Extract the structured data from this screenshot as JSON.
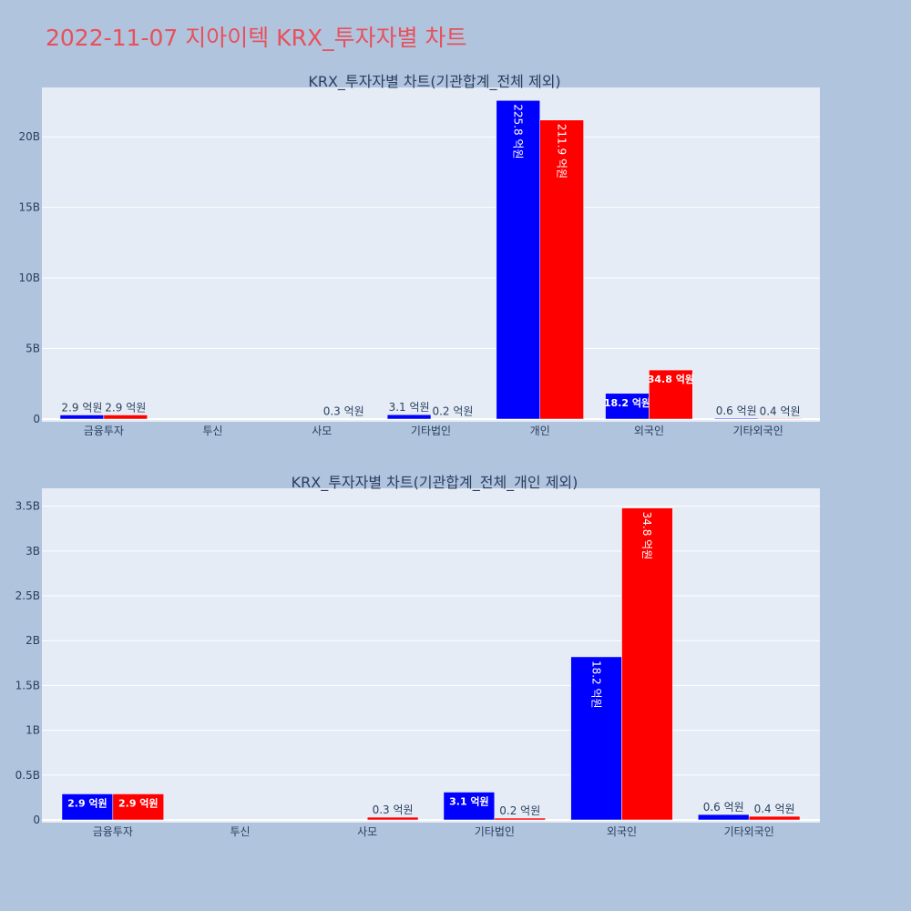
{
  "page_title": "2022-11-07 지아이텍 KRX_투자자별 차트",
  "colors": {
    "series_a": "#0000ff",
    "series_b": "#ff0000",
    "plot_bg": "#e5ecf6",
    "page_bg": "#b0c4de",
    "title": "#e8505b"
  },
  "chart_data": [
    {
      "type": "bar",
      "title": "KRX_투자자별 차트(기관합계_전체 제외)",
      "categories": [
        "금융투자",
        "투신",
        "사모",
        "기타법인",
        "개인",
        "외국인",
        "기타외국인"
      ],
      "series": [
        {
          "values": [
            290000000,
            0,
            0,
            310000000,
            22580000000,
            1820000000,
            60000000
          ],
          "labels": [
            "2.9 억원",
            "",
            "",
            "3.1 억원",
            "225.8 억원",
            "18.2 억원",
            "0.6 억원"
          ]
        },
        {
          "values": [
            290000000,
            0,
            30000000,
            20000000,
            21190000000,
            3480000000,
            40000000
          ],
          "labels": [
            "2.9 억원",
            "",
            "0.3 억원",
            "0.2 억원",
            "211.9 억원",
            "34.8 억원",
            "0.4 억원"
          ]
        }
      ],
      "ylim": [
        0,
        23500000000
      ],
      "yticks": [
        0,
        5000000000,
        10000000000,
        15000000000,
        20000000000
      ],
      "ytick_labels": [
        "0",
        "5B",
        "10B",
        "15B",
        "20B"
      ],
      "grid": true,
      "legend": "none"
    },
    {
      "type": "bar",
      "title": "KRX_투자자별 차트(기관합계_전체_개인 제외)",
      "categories": [
        "금융투자",
        "투신",
        "사모",
        "기타법인",
        "외국인",
        "기타외국인"
      ],
      "series": [
        {
          "values": [
            290000000,
            0,
            0,
            310000000,
            1820000000,
            60000000
          ],
          "labels": [
            "2.9 억원",
            "",
            "",
            "3.1 억원",
            "18.2 억원",
            "0.6 억원"
          ]
        },
        {
          "values": [
            290000000,
            0,
            30000000,
            20000000,
            3480000000,
            40000000
          ],
          "labels": [
            "2.9 억원",
            "",
            "0.3 억원",
            "0.2 억원",
            "34.8 억원",
            "0.4 억원"
          ]
        }
      ],
      "ylim": [
        0,
        3700000000
      ],
      "yticks": [
        0,
        500000000,
        1000000000,
        1500000000,
        2000000000,
        2500000000,
        3000000000,
        3500000000
      ],
      "ytick_labels": [
        "0",
        "0.5B",
        "1B",
        "1.5B",
        "2B",
        "2.5B",
        "3B",
        "3.5B"
      ],
      "grid": true,
      "legend": "none"
    }
  ]
}
